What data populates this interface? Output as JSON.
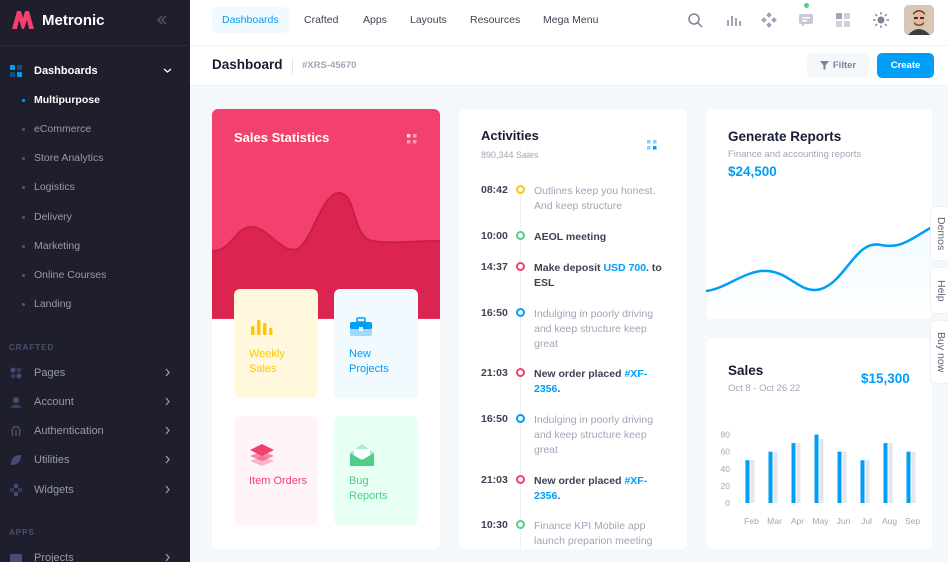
{
  "app": {
    "name": "Metronic"
  },
  "sidebar": {
    "dashboards_label": "Dashboards",
    "dashboard_subitems": [
      "Multipurpose",
      "eCommerce",
      "Store Analytics",
      "Logistics",
      "Delivery",
      "Marketing",
      "Online Courses",
      "Landing"
    ],
    "section_crafted": "CRAFTED",
    "crafted_items": [
      "Pages",
      "Account",
      "Authentication",
      "Utilities",
      "Widgets"
    ],
    "section_apps": "APPS",
    "apps_items": [
      "Projects"
    ]
  },
  "header": {
    "nav": [
      "Dashboards",
      "Crafted",
      "Apps",
      "Layouts",
      "Resources",
      "Mega Menu"
    ],
    "icons": [
      "search-icon",
      "chart-icon",
      "apps-icon",
      "chat-icon",
      "grid-icon",
      "sun-icon"
    ]
  },
  "toolbar": {
    "title": "Dashboard",
    "subtitle": "#XRS-45670",
    "filter_label": "Filter",
    "create_label": "Create"
  },
  "sales_statistics": {
    "title": "Sales Statistics",
    "tiles": [
      {
        "label": "Weekly Sales",
        "color": "#ffc700",
        "bg": "#fff8dd",
        "icon": "bar-chart-icon"
      },
      {
        "label": "New Projects",
        "color": "#009ef7",
        "bg": "#f1faff",
        "icon": "briefcase-icon"
      },
      {
        "label": "Item Orders",
        "color": "#f1416c",
        "bg": "#fff5f8",
        "icon": "layers-icon"
      },
      {
        "label": "Bug Reports",
        "color": "#50cd89",
        "bg": "#e8fff3",
        "icon": "mail-icon"
      }
    ]
  },
  "activities": {
    "title": "Activities",
    "subtitle": "890,344 Sales",
    "items": [
      {
        "time": "08:42",
        "text": "Outlines keep you honest. And keep structure",
        "link": "",
        "after": "",
        "bold": false,
        "color": "#ffc700"
      },
      {
        "time": "10:00",
        "text": "AEOL meeting",
        "link": "",
        "after": "",
        "bold": true,
        "color": "#50cd89"
      },
      {
        "time": "14:37",
        "text": "Make deposit ",
        "link": "USD 700",
        "after": ". to ESL",
        "bold": true,
        "color": "#f1416c"
      },
      {
        "time": "16:50",
        "text": "Indulging in poorly driving and keep structure keep great",
        "link": "",
        "after": "",
        "bold": false,
        "color": "#009ef7"
      },
      {
        "time": "21:03",
        "text": "New order placed ",
        "link": "#XF-2356",
        "after": ".",
        "bold": true,
        "color": "#f1416c"
      },
      {
        "time": "16:50",
        "text": "Indulging in poorly driving and keep structure keep great",
        "link": "",
        "after": "",
        "bold": false,
        "color": "#009ef7"
      },
      {
        "time": "21:03",
        "text": "New order placed ",
        "link": "#XF-2356",
        "after": ".",
        "bold": true,
        "color": "#f1416c"
      },
      {
        "time": "10:30",
        "text": "Finance KPI Mobile app launch preparion meeting",
        "link": "",
        "after": "",
        "bold": false,
        "color": "#50cd89"
      }
    ]
  },
  "generate_reports": {
    "title": "Generate Reports",
    "subtitle": "Finance and accounting reports",
    "amount": "$24,500"
  },
  "sales": {
    "title": "Sales",
    "subtitle": "Oct 8 - Oct 26 22",
    "amount": "$15,300"
  },
  "chart_data": {
    "type": "bar",
    "categories": [
      "Feb",
      "Mar",
      "Apr",
      "May",
      "Jun",
      "Jul",
      "Aug",
      "Sep"
    ],
    "series": [
      {
        "values": [
          50,
          60,
          70,
          80,
          60,
          50,
          70,
          60
        ],
        "color": "#009ef7"
      },
      {
        "values": [
          50,
          60,
          70,
          75,
          60,
          50,
          70,
          60
        ],
        "color": "#e4e6ef"
      }
    ],
    "yticks": [
      0,
      20,
      40,
      60,
      80
    ],
    "ylim": [
      0,
      90
    ]
  },
  "side_tabs": [
    "Demos",
    "Help",
    "Buy now"
  ]
}
